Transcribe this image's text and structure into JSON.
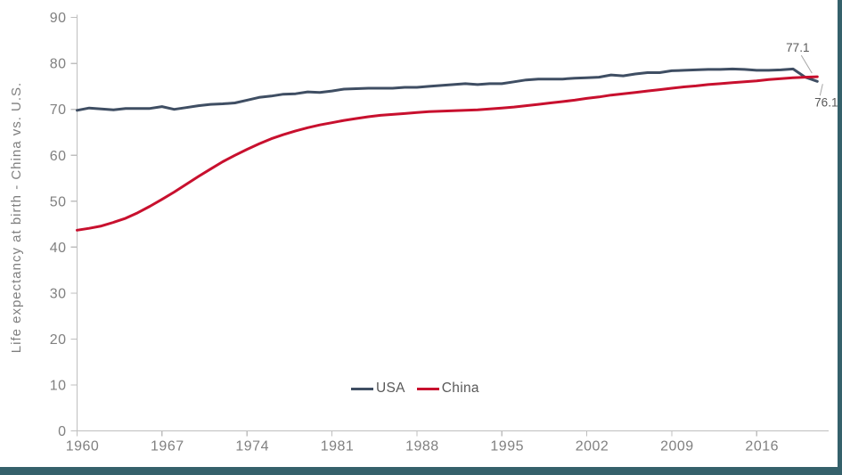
{
  "frame": {
    "background": "#ffffff",
    "edge_color": "#35616b"
  },
  "chart_data": {
    "type": "line",
    "title": "",
    "xlabel": "",
    "ylabel": "Life expectancy at birth - China vs. U.S.",
    "ylim": [
      0,
      90
    ],
    "yticks": [
      0,
      10,
      20,
      30,
      40,
      50,
      60,
      70,
      80,
      90
    ],
    "xticks": [
      1960,
      1967,
      1974,
      1981,
      1988,
      1995,
      2002,
      2009,
      2016
    ],
    "x_range": [
      1960,
      2021
    ],
    "grid": false,
    "legend_position": "bottom-center",
    "axis_color": "#bfbfbf",
    "tick_label_color": "#808080",
    "annotation_text_color": "#595959",
    "annotation_leader_color": "#a6a6a6",
    "years": [
      1960,
      1961,
      1962,
      1963,
      1964,
      1965,
      1966,
      1967,
      1968,
      1969,
      1970,
      1971,
      1972,
      1973,
      1974,
      1975,
      1976,
      1977,
      1978,
      1979,
      1980,
      1981,
      1982,
      1983,
      1984,
      1985,
      1986,
      1987,
      1988,
      1989,
      1990,
      1991,
      1992,
      1993,
      1994,
      1995,
      1996,
      1997,
      1998,
      1999,
      2000,
      2001,
      2002,
      2003,
      2004,
      2005,
      2006,
      2007,
      2008,
      2009,
      2010,
      2011,
      2012,
      2013,
      2014,
      2015,
      2016,
      2017,
      2018,
      2019,
      2020,
      2021
    ],
    "series": [
      {
        "name": "USA",
        "color": "#3f4e63",
        "values": [
          69.8,
          70.3,
          70.1,
          69.9,
          70.2,
          70.2,
          70.2,
          70.6,
          70.0,
          70.4,
          70.8,
          71.1,
          71.2,
          71.4,
          72.0,
          72.6,
          72.9,
          73.3,
          73.4,
          73.8,
          73.7,
          74.0,
          74.4,
          74.5,
          74.6,
          74.6,
          74.6,
          74.8,
          74.8,
          75.0,
          75.2,
          75.4,
          75.6,
          75.4,
          75.6,
          75.6,
          76.0,
          76.4,
          76.6,
          76.6,
          76.6,
          76.8,
          76.9,
          77.0,
          77.5,
          77.3,
          77.7,
          78.0,
          78.0,
          78.4,
          78.5,
          78.6,
          78.7,
          78.7,
          78.8,
          78.7,
          78.5,
          78.5,
          78.6,
          78.8,
          77.0,
          76.1
        ]
      },
      {
        "name": "China",
        "color": "#c8102e",
        "values": [
          43.7,
          44.1,
          44.6,
          45.4,
          46.3,
          47.5,
          48.9,
          50.4,
          52.0,
          53.7,
          55.4,
          57.0,
          58.6,
          60.0,
          61.3,
          62.5,
          63.6,
          64.5,
          65.3,
          66.0,
          66.6,
          67.1,
          67.6,
          68.0,
          68.4,
          68.7,
          68.9,
          69.1,
          69.3,
          69.5,
          69.6,
          69.7,
          69.8,
          69.9,
          70.1,
          70.3,
          70.5,
          70.8,
          71.1,
          71.4,
          71.7,
          72.0,
          72.4,
          72.7,
          73.1,
          73.4,
          73.7,
          74.0,
          74.3,
          74.6,
          74.9,
          75.1,
          75.4,
          75.6,
          75.8,
          76.0,
          76.2,
          76.5,
          76.7,
          76.9,
          77.0,
          77.1
        ]
      }
    ],
    "annotations": [
      {
        "text": "77.1",
        "series": "China"
      },
      {
        "text": "76.1",
        "series": "USA"
      }
    ]
  }
}
